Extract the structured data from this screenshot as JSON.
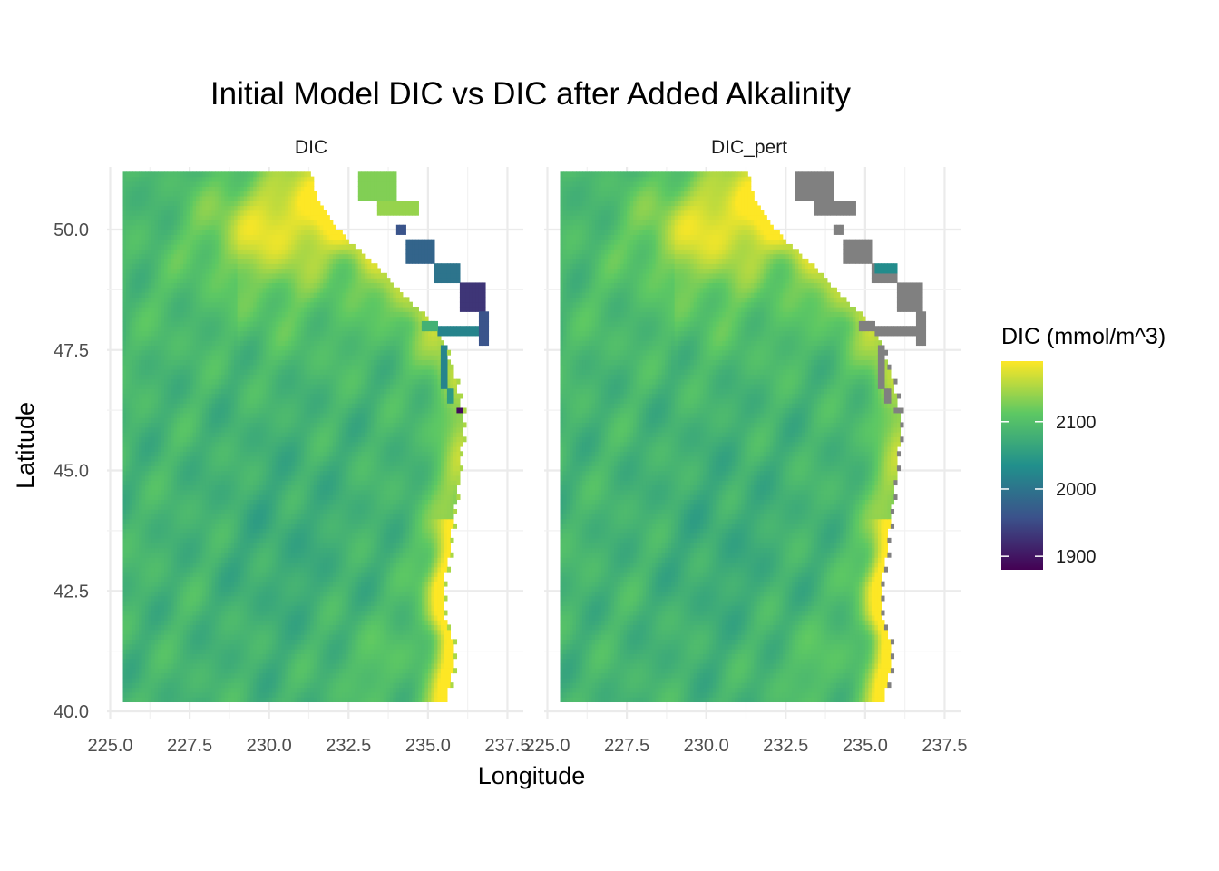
{
  "chart_data": {
    "type": "heatmap",
    "title": "Initial Model DIC vs DIC after Added Alkalinity",
    "xlabel": "Longitude",
    "ylabel": "Latitude",
    "xlim": [
      224.9,
      238.0
    ],
    "ylim": [
      39.85,
      51.3
    ],
    "x_ticks": [
      "225.0",
      "227.5",
      "230.0",
      "232.5",
      "235.0",
      "237.5"
    ],
    "x_tick_values": [
      225.0,
      227.5,
      230.0,
      232.5,
      235.0,
      237.5
    ],
    "y_ticks": [
      "40.0",
      "42.5",
      "45.0",
      "47.5",
      "50.0"
    ],
    "y_tick_values": [
      40.0,
      42.5,
      45.0,
      47.5,
      50.0
    ],
    "grid": true,
    "legend_position": "right",
    "na_color": "#808080",
    "panels": [
      {
        "name": "DIC",
        "coastal_values": "unperturbed"
      },
      {
        "name": "DIC_pert",
        "coastal_values": "NA"
      }
    ],
    "colorbar": {
      "title": "DIC (mmol/m^3)",
      "palette": "viridis",
      "range": [
        1880,
        2190
      ],
      "ticks": [
        "1900",
        "2000",
        "2100"
      ],
      "tick_values": [
        1900,
        2000,
        2100
      ],
      "colors": [
        "#440154",
        "#3b528b",
        "#21908c",
        "#5dc863",
        "#fde725"
      ]
    },
    "grid_extent": {
      "lon": [
        225.4,
        236.6
      ],
      "lat": [
        40.2,
        51.2
      ]
    },
    "typical_values": {
      "offshore_southwest": 2085,
      "northern_offshore": 2175,
      "southern_coastal": 2160,
      "puget_sound": 2020,
      "strait_of_georgia": 1960,
      "columbia_river": 1890
    }
  }
}
